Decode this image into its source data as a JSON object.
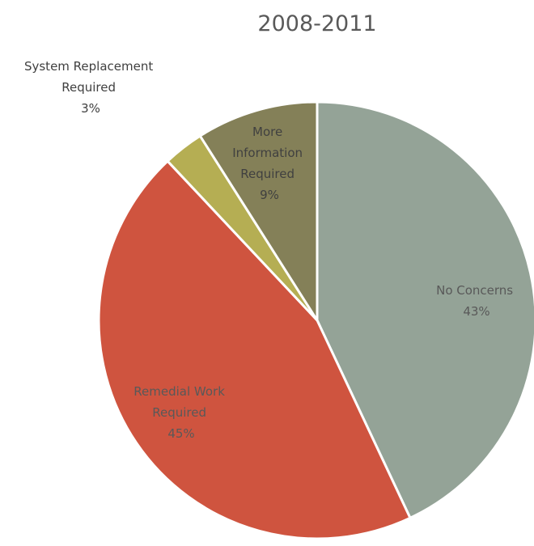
{
  "chart_data": {
    "type": "pie",
    "title": "2008-2011",
    "slices": [
      {
        "label": "No Concerns",
        "percent_label": "43%",
        "value": 43,
        "color": "#94A397"
      },
      {
        "label": "Remedial Work Required",
        "percent_label": "45%",
        "value": 45,
        "color": "#CF543F"
      },
      {
        "label": "System Replacement Required",
        "percent_label": "3%",
        "value": 3,
        "color": "#B5AE53"
      },
      {
        "label": "More Information Required",
        "percent_label": "9%",
        "value": 9,
        "color": "#848058"
      }
    ]
  }
}
